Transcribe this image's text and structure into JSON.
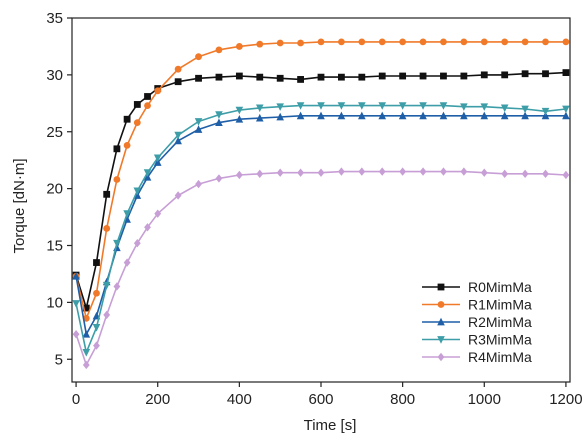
{
  "chart_data": {
    "type": "line",
    "title": "",
    "xlabel": "Time [s]",
    "ylabel": "Torque [dN·m]",
    "xlim": [
      -10,
      1210
    ],
    "ylim": [
      3,
      35
    ],
    "xticks": [
      0,
      200,
      400,
      600,
      800,
      1000,
      1200
    ],
    "yticks": [
      5,
      10,
      15,
      20,
      25,
      30,
      35
    ],
    "grid": false,
    "legend_position": "lower-right",
    "series": [
      {
        "name": "R0MimMa",
        "color": "#111111",
        "marker": "square",
        "x": [
          0,
          25,
          50,
          75,
          100,
          125,
          150,
          175,
          200,
          250,
          300,
          350,
          400,
          450,
          500,
          550,
          600,
          650,
          700,
          750,
          800,
          850,
          900,
          950,
          1000,
          1050,
          1100,
          1150,
          1200
        ],
        "y": [
          12.4,
          9.5,
          13.5,
          19.5,
          23.5,
          26.1,
          27.4,
          28.1,
          28.8,
          29.4,
          29.7,
          29.8,
          29.9,
          29.8,
          29.7,
          29.6,
          29.8,
          29.8,
          29.8,
          29.9,
          29.9,
          29.9,
          29.9,
          29.9,
          30.0,
          30.0,
          30.1,
          30.1,
          30.2
        ]
      },
      {
        "name": "R1MimMa",
        "color": "#f07a2a",
        "marker": "circle",
        "x": [
          0,
          25,
          50,
          75,
          100,
          125,
          150,
          175,
          200,
          250,
          300,
          350,
          400,
          450,
          500,
          550,
          600,
          650,
          700,
          750,
          800,
          850,
          900,
          950,
          1000,
          1050,
          1100,
          1150,
          1200
        ],
        "y": [
          12.3,
          8.6,
          10.8,
          16.5,
          20.8,
          23.8,
          25.8,
          27.3,
          28.6,
          30.5,
          31.6,
          32.2,
          32.5,
          32.7,
          32.8,
          32.8,
          32.9,
          32.9,
          32.9,
          32.9,
          32.9,
          32.9,
          32.9,
          32.9,
          32.9,
          32.9,
          32.9,
          32.9,
          32.9
        ]
      },
      {
        "name": "R2MimMa",
        "color": "#1f5fa8",
        "marker": "triangle-up",
        "x": [
          0,
          25,
          50,
          75,
          100,
          125,
          150,
          175,
          200,
          250,
          300,
          350,
          400,
          450,
          500,
          550,
          600,
          650,
          700,
          750,
          800,
          850,
          900,
          950,
          1000,
          1050,
          1100,
          1150,
          1200
        ],
        "y": [
          12.3,
          7.2,
          8.8,
          11.8,
          14.8,
          17.3,
          19.4,
          21.0,
          22.3,
          24.2,
          25.2,
          25.8,
          26.1,
          26.2,
          26.3,
          26.4,
          26.4,
          26.4,
          26.4,
          26.4,
          26.4,
          26.4,
          26.4,
          26.4,
          26.4,
          26.4,
          26.4,
          26.4,
          26.4
        ]
      },
      {
        "name": "R3MimMa",
        "color": "#3d9ea8",
        "marker": "triangle-down",
        "x": [
          0,
          25,
          50,
          75,
          100,
          125,
          150,
          175,
          200,
          250,
          300,
          350,
          400,
          450,
          500,
          550,
          600,
          650,
          700,
          750,
          800,
          850,
          900,
          950,
          1000,
          1050,
          1100,
          1150,
          1200
        ],
        "y": [
          9.9,
          5.6,
          7.8,
          11.5,
          15.2,
          17.8,
          19.8,
          21.4,
          22.7,
          24.7,
          25.9,
          26.5,
          26.9,
          27.1,
          27.2,
          27.3,
          27.3,
          27.3,
          27.3,
          27.3,
          27.3,
          27.3,
          27.3,
          27.2,
          27.2,
          27.1,
          27.0,
          26.8,
          27.0
        ]
      },
      {
        "name": "R4MimMa",
        "color": "#c79fd6",
        "marker": "diamond",
        "x": [
          0,
          25,
          50,
          75,
          100,
          125,
          150,
          175,
          200,
          250,
          300,
          350,
          400,
          450,
          500,
          550,
          600,
          650,
          700,
          750,
          800,
          850,
          900,
          950,
          1000,
          1050,
          1100,
          1150,
          1200
        ],
        "y": [
          7.2,
          4.5,
          6.2,
          8.9,
          11.4,
          13.5,
          15.2,
          16.6,
          17.8,
          19.4,
          20.4,
          20.9,
          21.2,
          21.3,
          21.4,
          21.4,
          21.4,
          21.5,
          21.5,
          21.5,
          21.5,
          21.5,
          21.5,
          21.5,
          21.4,
          21.3,
          21.3,
          21.3,
          21.2
        ]
      }
    ]
  }
}
